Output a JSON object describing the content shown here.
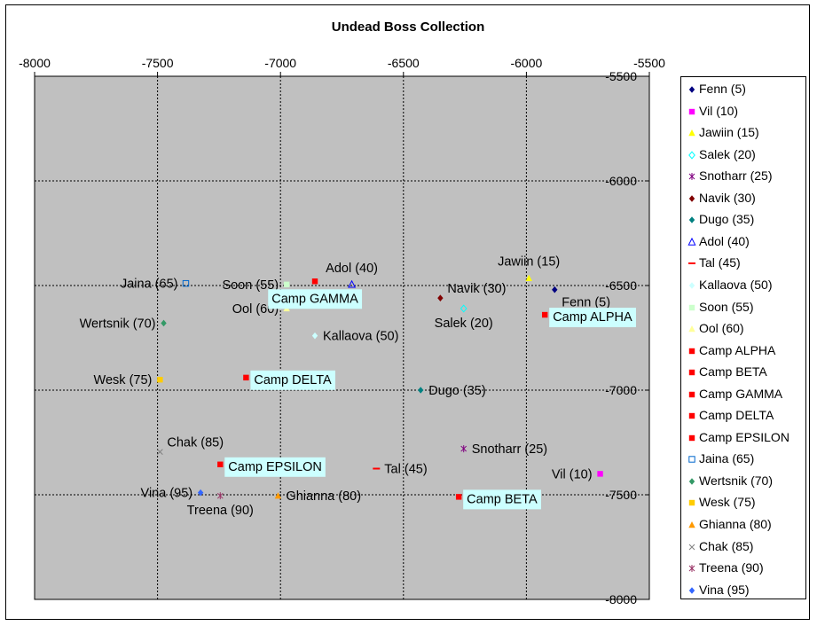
{
  "chart_data": {
    "type": "scatter",
    "title": "Undead Boss Collection",
    "xlim": [
      -8000,
      -5500
    ],
    "ylim": [
      -8000,
      -5500
    ],
    "x_ticks": [
      "-8000",
      "-7500",
      "-7000",
      "-6500",
      "-6000",
      "-5500"
    ],
    "y_ticks": [
      "-5500",
      "-6000",
      "-6500",
      "-7000",
      "-7500",
      "-8000"
    ],
    "x_tick_values": [
      -8000,
      -7500,
      -7000,
      -6500,
      -6000,
      -5500
    ],
    "y_tick_values": [
      -5500,
      -6000,
      -6500,
      -7000,
      -7500,
      -8000
    ],
    "grid": true,
    "plot_background": "#c0c0c0",
    "legend_placement": "right",
    "series": [
      {
        "name": "Fenn (5)",
        "label": "Fenn (5)",
        "marker": "diamond",
        "color": "#000080",
        "x": -5885,
        "y": -6520,
        "label_style": "plain",
        "label_anchor": "below-right"
      },
      {
        "name": "Vil (10)",
        "label": "Vil (10)",
        "marker": "square",
        "color": "#ff00ff",
        "x": -5700,
        "y": -7400,
        "label_style": "plain",
        "label_anchor": "left"
      },
      {
        "name": "Jawiin (15)",
        "label": "Jawiin (15)",
        "marker": "triangle",
        "color": "#ffff00",
        "x": -5990,
        "y": -6465,
        "label_style": "plain",
        "label_anchor": "above"
      },
      {
        "name": "Salek (20)",
        "label": "Salek (20)",
        "marker": "diamond-open",
        "color": "#00ffff",
        "x": -6255,
        "y": -6610,
        "label_style": "plain",
        "label_anchor": "below"
      },
      {
        "name": "Snotharr (25)",
        "label": "Snotharr (25)",
        "marker": "x-star",
        "color": "#800080",
        "x": -6255,
        "y": -7280,
        "label_style": "plain",
        "label_anchor": "right"
      },
      {
        "name": "Navik (30)",
        "label": "Navik (30)",
        "marker": "diamond",
        "color": "#800000",
        "x": -6350,
        "y": -6560,
        "label_style": "plain",
        "label_anchor": "above-right"
      },
      {
        "name": "Dugo (35)",
        "label": "Dugo (35)",
        "marker": "diamond",
        "color": "#008080",
        "x": -6430,
        "y": -7000,
        "label_style": "plain",
        "label_anchor": "right"
      },
      {
        "name": "Adol (40)",
        "label": "Adol (40)",
        "marker": "triangle-open",
        "color": "#0000ff",
        "x": -6710,
        "y": -6495,
        "label_style": "plain",
        "label_anchor": "above"
      },
      {
        "name": "Tal (45)",
        "label": "Tal (45)",
        "marker": "dash",
        "color": "#ff0000",
        "x": -6610,
        "y": -7375,
        "label_style": "plain",
        "label_anchor": "right"
      },
      {
        "name": "Kallaova (50)",
        "label": "Kallaova (50)",
        "marker": "diamond",
        "color": "#ccffff",
        "x": -6860,
        "y": -6740,
        "label_style": "plain",
        "label_anchor": "right"
      },
      {
        "name": "Soon (55)",
        "label": "Soon (55)",
        "marker": "square",
        "color": "#ccffcc",
        "x": -6975,
        "y": -6495,
        "label_style": "plain",
        "label_anchor": "left"
      },
      {
        "name": "Ool (60)",
        "label": "Ool (60)",
        "marker": "triangle",
        "color": "#ffff99",
        "x": -6975,
        "y": -6610,
        "label_style": "plain",
        "label_anchor": "left"
      },
      {
        "name": "Camp ALPHA",
        "label": "Camp ALPHA",
        "marker": "square",
        "color": "#ff0000",
        "x": -5925,
        "y": -6640,
        "label_style": "box",
        "label_anchor": "right"
      },
      {
        "name": "Camp BETA",
        "label": "Camp BETA",
        "marker": "square",
        "color": "#ff0000",
        "x": -6275,
        "y": -7510,
        "label_style": "box",
        "label_anchor": "right"
      },
      {
        "name": "Camp GAMMA",
        "label": "Camp GAMMA",
        "marker": "square",
        "color": "#ff0000",
        "x": -6860,
        "y": -6480,
        "label_style": "box",
        "label_anchor": "below"
      },
      {
        "name": "Camp DELTA",
        "label": "Camp DELTA",
        "marker": "square",
        "color": "#ff0000",
        "x": -7140,
        "y": -6940,
        "label_style": "box",
        "label_anchor": "right"
      },
      {
        "name": "Camp EPSILON",
        "label": "Camp EPSILON",
        "marker": "square",
        "color": "#ff0000",
        "x": -7245,
        "y": -7355,
        "label_style": "box",
        "label_anchor": "right"
      },
      {
        "name": "Jaina (65)",
        "label": "Jaina (65)",
        "marker": "square-open",
        "color": "#0066cc",
        "x": -7385,
        "y": -6490,
        "label_style": "plain",
        "label_anchor": "left"
      },
      {
        "name": "Wertsnik (70)",
        "label": "Wertsnik (70)",
        "marker": "diamond",
        "color": "#339966",
        "x": -7475,
        "y": -6680,
        "label_style": "plain",
        "label_anchor": "left"
      },
      {
        "name": "Wesk (75)",
        "label": "Wesk (75)",
        "marker": "square",
        "color": "#ffcc00",
        "x": -7490,
        "y": -6950,
        "label_style": "plain",
        "label_anchor": "left"
      },
      {
        "name": "Ghianna (80)",
        "label": "Ghianna (80)",
        "marker": "triangle",
        "color": "#ff9900",
        "x": -7010,
        "y": -7505,
        "label_style": "plain",
        "label_anchor": "right"
      },
      {
        "name": "Chak (85)",
        "label": "Chak (85)",
        "marker": "x",
        "color": "#808080",
        "x": -7490,
        "y": -7295,
        "label_style": "plain",
        "label_anchor": "above-right"
      },
      {
        "name": "Treena (90)",
        "label": "Treena (90)",
        "marker": "x-star",
        "color": "#993366",
        "x": -7245,
        "y": -7505,
        "label_style": "plain",
        "label_anchor": "below"
      },
      {
        "name": "Vina (95)",
        "label": "Vina (95)",
        "marker": "diamond",
        "color": "#3366ff",
        "x": -7325,
        "y": -7490,
        "label_style": "plain",
        "label_anchor": "left"
      }
    ]
  }
}
